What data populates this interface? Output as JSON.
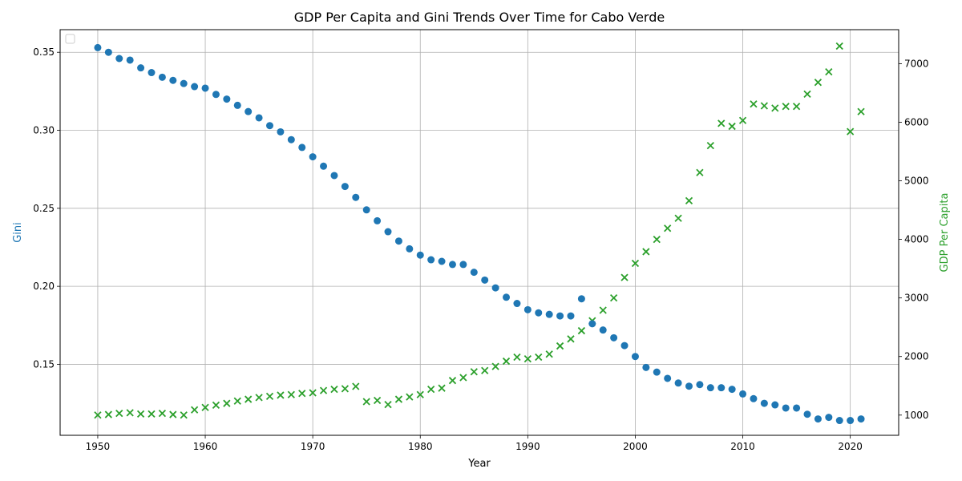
{
  "chart_data": {
    "type": "scatter",
    "title": "GDP Per Capita and Gini Trends Over Time for Cabo Verde",
    "xlabel": "Year",
    "ylabel_left": "Gini",
    "ylabel_right": "GDP Per Capita",
    "xlim": [
      1946.5,
      2024.5
    ],
    "ylim_left": [
      0.1045,
      0.3645
    ],
    "ylim_right": [
      655,
      7580
    ],
    "x_ticks": [
      1950,
      1960,
      1970,
      1980,
      1990,
      2000,
      2010,
      2020
    ],
    "y_ticks_left": [
      0.15,
      0.2,
      0.25,
      0.3,
      0.35
    ],
    "y_ticks_right": [
      1000,
      2000,
      3000,
      4000,
      5000,
      6000,
      7000
    ],
    "grid": true,
    "legend": "upper-left (empty)",
    "colors": {
      "gini": "#1f77b4",
      "gdp": "#2ca02c"
    },
    "series": [
      {
        "key": "gini",
        "marker": "circle",
        "axis": "left",
        "x": [
          1950,
          1951,
          1952,
          1953,
          1954,
          1955,
          1956,
          1957,
          1958,
          1959,
          1960,
          1961,
          1962,
          1963,
          1964,
          1965,
          1966,
          1967,
          1968,
          1969,
          1970,
          1971,
          1972,
          1973,
          1974,
          1975,
          1976,
          1977,
          1978,
          1979,
          1980,
          1981,
          1982,
          1983,
          1984,
          1985,
          1986,
          1987,
          1988,
          1989,
          1990,
          1991,
          1992,
          1993,
          1994,
          1995,
          1996,
          1997,
          1998,
          1999,
          2000,
          2001,
          2002,
          2003,
          2004,
          2005,
          2006,
          2007,
          2008,
          2009,
          2010,
          2011,
          2012,
          2013,
          2014,
          2015,
          2016,
          2017,
          2018,
          2019,
          2020,
          2021
        ],
        "y": [
          0.353,
          0.35,
          0.346,
          0.345,
          0.34,
          0.337,
          0.334,
          0.332,
          0.33,
          0.328,
          0.327,
          0.323,
          0.32,
          0.316,
          0.312,
          0.308,
          0.303,
          0.299,
          0.294,
          0.289,
          0.283,
          0.277,
          0.271,
          0.264,
          0.257,
          0.249,
          0.242,
          0.235,
          0.229,
          0.224,
          0.22,
          0.217,
          0.216,
          0.214,
          0.214,
          0.209,
          0.204,
          0.199,
          0.193,
          0.189,
          0.185,
          0.183,
          0.182,
          0.181,
          0.181,
          0.192,
          0.176,
          0.172,
          0.167,
          0.162,
          0.155,
          0.148,
          0.145,
          0.141,
          0.138,
          0.136,
          0.137,
          0.135,
          0.135,
          0.134,
          0.131,
          0.128,
          0.125,
          0.124,
          0.122,
          0.122,
          0.118,
          0.115,
          0.116,
          0.114,
          0.114,
          0.115
        ]
      },
      {
        "key": "gdp",
        "marker": "x",
        "axis": "right",
        "x": [
          1950,
          1951,
          1952,
          1953,
          1954,
          1955,
          1956,
          1957,
          1958,
          1959,
          1960,
          1961,
          1962,
          1963,
          1964,
          1965,
          1966,
          1967,
          1968,
          1969,
          1970,
          1971,
          1972,
          1973,
          1974,
          1975,
          1976,
          1977,
          1978,
          1979,
          1980,
          1981,
          1982,
          1983,
          1984,
          1985,
          1986,
          1987,
          1988,
          1989,
          1990,
          1991,
          1992,
          1993,
          1994,
          1995,
          1996,
          1997,
          1998,
          1999,
          2000,
          2001,
          2002,
          2003,
          2004,
          2005,
          2006,
          2007,
          2008,
          2009,
          2010,
          2011,
          2012,
          2013,
          2014,
          2015,
          2016,
          2017,
          2018,
          2019,
          2020,
          2021
        ],
        "y": [
          1000,
          1010,
          1030,
          1040,
          1020,
          1020,
          1030,
          1010,
          1000,
          1090,
          1130,
          1170,
          1200,
          1240,
          1270,
          1300,
          1320,
          1340,
          1350,
          1370,
          1380,
          1420,
          1440,
          1450,
          1490,
          1230,
          1250,
          1180,
          1270,
          1310,
          1350,
          1440,
          1460,
          1590,
          1640,
          1740,
          1760,
          1830,
          1920,
          1990,
          1960,
          1990,
          2040,
          2180,
          2300,
          2440,
          2610,
          2790,
          3000,
          3350,
          3590,
          3790,
          4000,
          4190,
          4360,
          4660,
          5140,
          5600,
          5980,
          5930,
          6030,
          6310,
          6280,
          6240,
          6270,
          6270,
          6480,
          6680,
          6860,
          7300,
          5840,
          6180
        ]
      }
    ]
  }
}
